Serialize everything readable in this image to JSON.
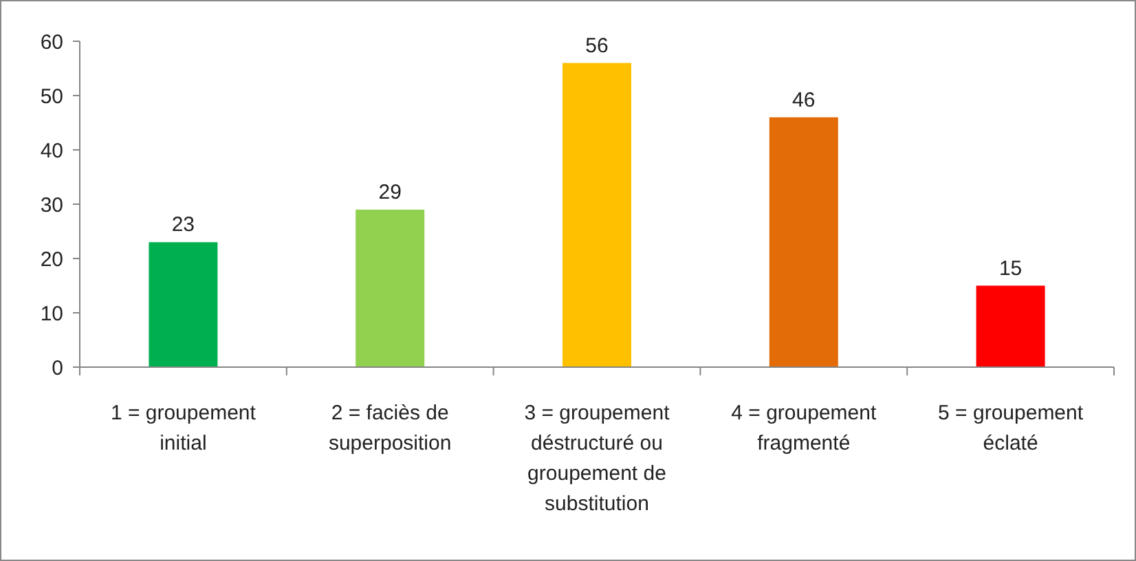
{
  "chart_data": {
    "type": "bar",
    "categories": [
      "1 = groupement initial",
      "2 = faciès de superposition",
      "3 = groupement déstructuré ou groupement de substitution",
      "4 = groupement fragmenté",
      "5 = groupement éclaté"
    ],
    "values": [
      23,
      29,
      56,
      46,
      15
    ],
    "colors": [
      "#00b050",
      "#92d050",
      "#ffc000",
      "#e36c09",
      "#ff0000"
    ],
    "ylim": [
      0,
      60
    ],
    "yticks": [
      0,
      10,
      20,
      30,
      40,
      50,
      60
    ],
    "data_labels": true
  }
}
